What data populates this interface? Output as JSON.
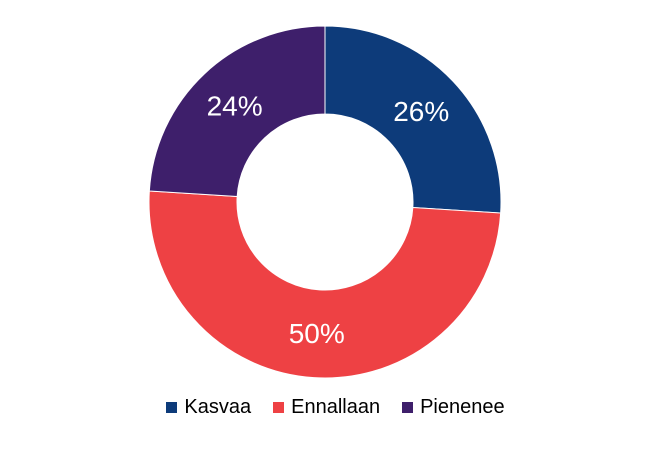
{
  "chart_data": {
    "type": "pie",
    "variant": "donut",
    "title": "",
    "categories": [
      "Kasvaa",
      "Ennallaan",
      "Pienenee"
    ],
    "values": [
      26,
      50,
      24
    ],
    "labels": [
      "26%",
      "50%",
      "24%"
    ],
    "colors": [
      "#0d3b7a",
      "#ee4144",
      "#3e1f6b"
    ],
    "legend_position": "bottom"
  }
}
